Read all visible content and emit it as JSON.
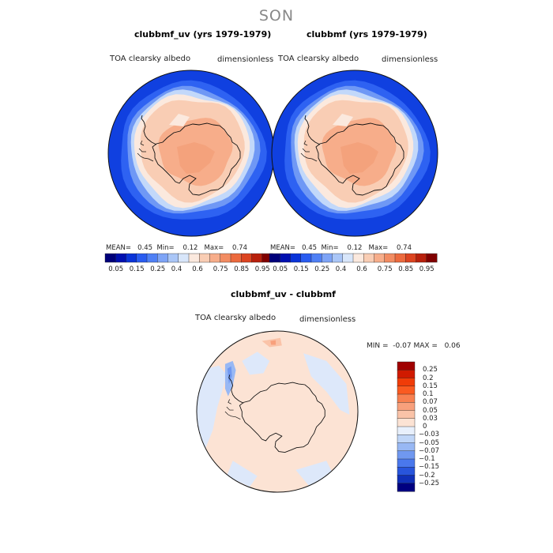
{
  "season": "SON",
  "panels": [
    {
      "title": "clubbmf_uv (yrs 1979-1979)",
      "variable": "TOA clearsky albedo",
      "units": "dimensionless",
      "stats": {
        "mean_label": "MEAN=",
        "mean": "0.45",
        "min_label": "Min=",
        "min": "0.12",
        "max_label": "Max=",
        "max": "0.74"
      }
    },
    {
      "title": "clubbmf (yrs 1979-1979)",
      "variable": "TOA clearsky albedo",
      "units": "dimensionless",
      "stats": {
        "mean_label": "MEAN=",
        "mean": "0.45",
        "min_label": "Min=",
        "min": "0.12",
        "max_label": "Max=",
        "max": "0.74"
      }
    },
    {
      "title": "clubbmf_uv - clubbmf",
      "variable": "TOA clearsky albedo",
      "units": "dimensionless",
      "stats": {
        "min_label": "MIN =",
        "min": "-0.07",
        "max_label": "MAX =",
        "max": "0.06"
      }
    }
  ],
  "colorbar_top": {
    "colors": [
      "#00007a",
      "#0010b0",
      "#0a34d8",
      "#2a5cf0",
      "#4f80f5",
      "#7ea4f6",
      "#aac6f7",
      "#d8e6fa",
      "#fbe9de",
      "#f9cdb4",
      "#f7ad8a",
      "#f28c62",
      "#ec6a3e",
      "#dc4420",
      "#b8200c",
      "#800000"
    ],
    "tick_labels": [
      "0.05",
      "0.15",
      "0.25",
      "0.4",
      "0.6",
      "0.75",
      "0.85",
      "0.95"
    ]
  },
  "colorbar_diff": {
    "colors": [
      "#a00000",
      "#d01a00",
      "#f03c08",
      "#fa5a20",
      "#f88050",
      "#f8a07c",
      "#fac3a8",
      "#fce3d4",
      "#e8f0fc",
      "#c0d6f8",
      "#98b8f4",
      "#7098f0",
      "#4a78ec",
      "#2855dc",
      "#1030b8",
      "#000080"
    ],
    "tick_labels": [
      "0.25",
      "0.2",
      "0.15",
      "0.1",
      "0.07",
      "0.05",
      "0.03",
      "0",
      "-0.03",
      "-0.05",
      "-0.07",
      "-0.1",
      "-0.15",
      "-0.2",
      "-0.25"
    ]
  },
  "chart_data": [
    {
      "type": "heatmap",
      "projection": "south-polar-stereographic",
      "title": "clubbmf_uv (yrs 1979-1979)",
      "field": "TOA clearsky albedo",
      "units": "dimensionless",
      "mean": 0.45,
      "min": 0.12,
      "max": 0.74
    },
    {
      "type": "heatmap",
      "projection": "south-polar-stereographic",
      "title": "clubbmf (yrs 1979-1979)",
      "field": "TOA clearsky albedo",
      "units": "dimensionless",
      "mean": 0.45,
      "min": 0.12,
      "max": 0.74
    },
    {
      "type": "heatmap",
      "projection": "south-polar-stereographic",
      "title": "clubbmf_uv - clubbmf",
      "field": "TOA clearsky albedo",
      "units": "dimensionless",
      "min": -0.07,
      "max": 0.06
    }
  ]
}
